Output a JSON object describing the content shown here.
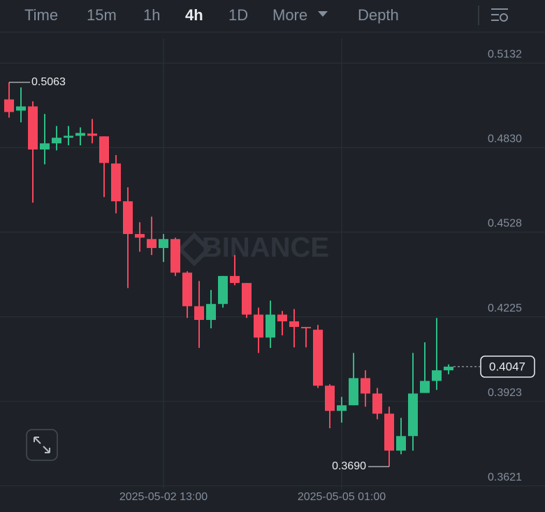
{
  "tabs": [
    "Time",
    "15m",
    "1h",
    "4h",
    "1D",
    "More",
    "Depth"
  ],
  "active_tab_index": 3,
  "chart_data": {
    "type": "candlestick",
    "watermark": "BINANCE",
    "categories": [
      null,
      null,
      null,
      null,
      null,
      null,
      null,
      null,
      null,
      null,
      null,
      null,
      null,
      "2025-05-02 13:00",
      null,
      null,
      null,
      null,
      null,
      null,
      null,
      null,
      null,
      null,
      null,
      null,
      null,
      null,
      "2025-05-05 01:00",
      null,
      null,
      null,
      null,
      null,
      null,
      null,
      null,
      null
    ],
    "open": [
      0.5002,
      0.4962,
      0.4977,
      0.4823,
      0.4845,
      0.4865,
      0.4872,
      0.488,
      0.487,
      0.4773,
      0.4638,
      0.4521,
      0.4503,
      0.4471,
      0.4503,
      0.4383,
      0.4263,
      0.4214,
      0.4271,
      0.4371,
      0.4346,
      0.4233,
      0.4151,
      0.4233,
      0.4209,
      0.4189,
      0.4179,
      0.3979,
      0.3889,
      0.3909,
      0.4006,
      0.3951,
      0.3879,
      0.3747,
      0.3799,
      0.3953,
      0.3996,
      0.4034
    ],
    "high": [
      0.5063,
      0.5045,
      0.4995,
      0.495,
      0.4907,
      0.4907,
      0.4902,
      0.4932,
      0.487,
      0.4803,
      0.4688,
      0.4563,
      0.4583,
      0.4521,
      0.4508,
      0.4388,
      0.4353,
      0.4321,
      0.4371,
      0.4446,
      0.4346,
      0.4258,
      0.4283,
      0.4246,
      0.4253,
      0.4189,
      0.4196,
      0.3984,
      0.3939,
      0.4096,
      0.4034,
      0.3971,
      0.3904,
      0.3864,
      0.4096,
      0.4134,
      0.4221,
      0.4055
    ],
    "low": [
      0.4937,
      0.492,
      0.4633,
      0.477,
      0.482,
      0.4838,
      0.4838,
      0.4845,
      0.4653,
      0.4595,
      0.4328,
      0.4458,
      0.4446,
      0.4421,
      0.4371,
      0.4221,
      0.4114,
      0.4184,
      0.4258,
      0.4338,
      0.4221,
      0.4096,
      0.4114,
      0.4159,
      0.4116,
      0.4116,
      0.3971,
      0.3827,
      0.3847,
      0.3909,
      0.3904,
      0.3859,
      0.369,
      0.3734,
      0.3747,
      0.3953,
      0.3964,
      0.402
    ],
    "close": [
      0.4957,
      0.4977,
      0.4823,
      0.4845,
      0.4865,
      0.4872,
      0.4882,
      0.4872,
      0.4775,
      0.4638,
      0.4521,
      0.4508,
      0.4471,
      0.4503,
      0.4383,
      0.4263,
      0.4214,
      0.4271,
      0.4371,
      0.4346,
      0.4233,
      0.4151,
      0.4233,
      0.4209,
      0.4189,
      0.4184,
      0.3979,
      0.3889,
      0.3909,
      0.4006,
      0.3951,
      0.3879,
      0.3747,
      0.3799,
      0.3951,
      0.3996,
      0.4034,
      0.4047
    ],
    "up_color": "#2ebd85",
    "down_color": "#f6465d",
    "ylim": [
      0.361,
      0.522
    ],
    "yticks": [
      0.5132,
      0.483,
      0.4528,
      0.4225,
      0.3923,
      0.3621
    ],
    "ytick_labels": [
      "0.5132",
      "0.4830",
      "0.4528",
      "0.4225",
      "0.3923",
      "0.3621"
    ],
    "grid": true,
    "max_label": "0.5063",
    "min_label": "0.3690",
    "last_price_label": "0.4047"
  }
}
